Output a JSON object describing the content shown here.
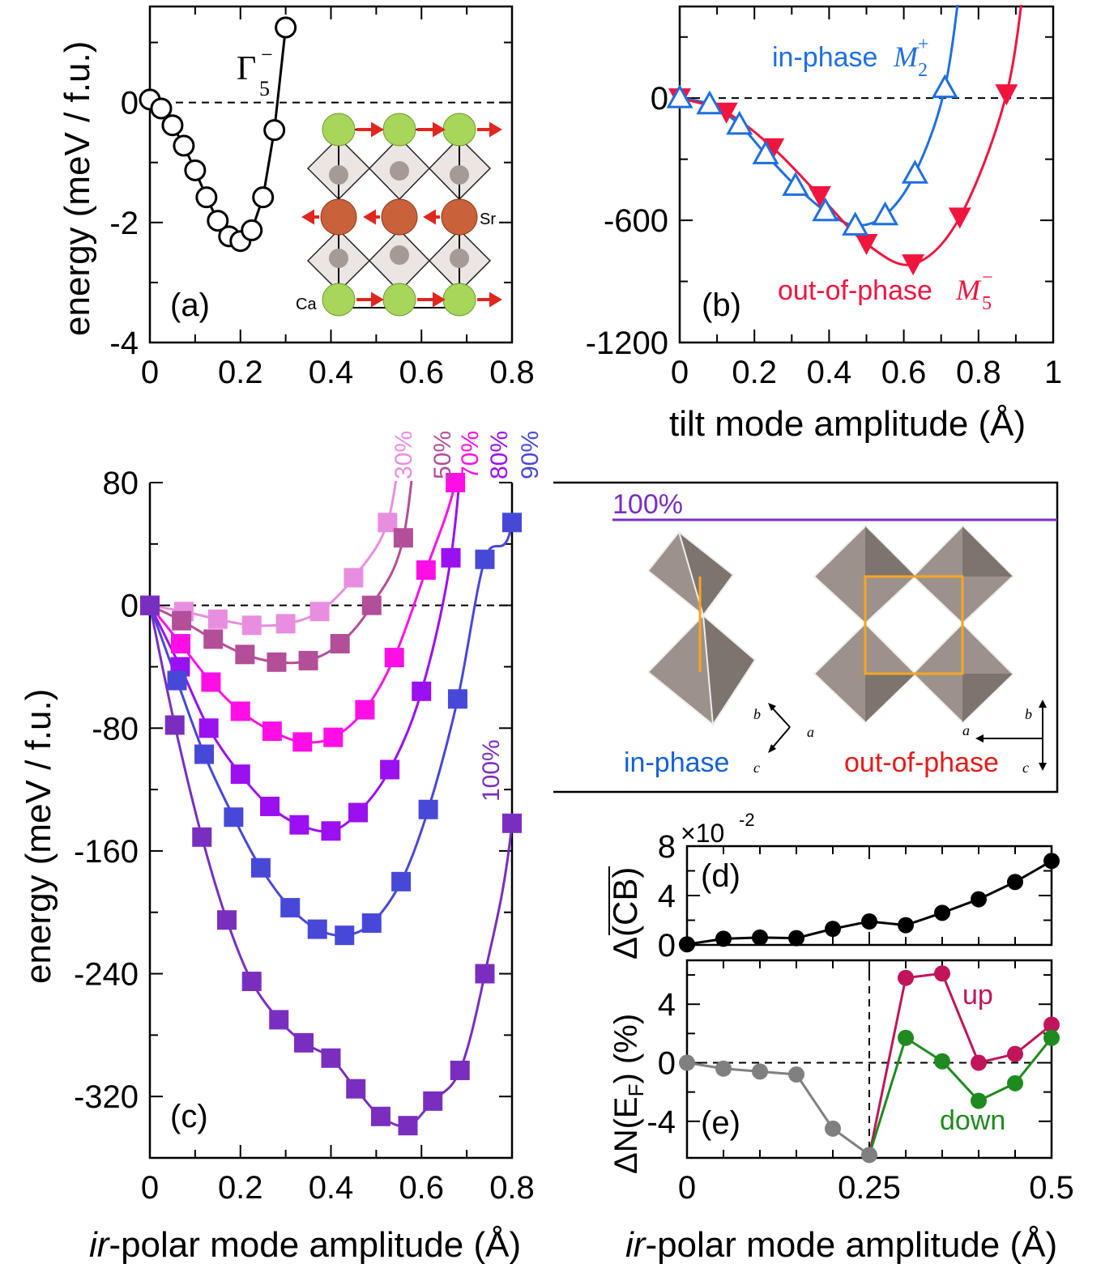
{
  "panels": {
    "a": {
      "label": "(a)",
      "mode_label": "Γ",
      "mode_sup": "−",
      "mode_sub": "5",
      "atom_sr": "Sr",
      "atom_ca": "Ca"
    },
    "b": {
      "label": "(b)",
      "in_phase_text": "in-phase",
      "in_phase_mode": "M",
      "in_phase_sup": "+",
      "in_phase_sub": "2",
      "out_phase_text": "out-of-phase",
      "out_phase_mode": "M",
      "out_phase_sup": "−",
      "out_phase_sub": "5"
    },
    "c": {
      "label": "(c)",
      "top_labels": [
        "30%",
        "50%",
        "70%",
        "80%",
        "90%"
      ],
      "label_100_side": "100%",
      "label_100_inset": "100%"
    },
    "inset": {
      "in_phase": "in-phase",
      "out_of_phase": "out-of-phase",
      "axis_a": "a",
      "axis_b": "b",
      "axis_c": "c"
    },
    "d": {
      "label": "(d)",
      "multiplier": "×10",
      "multiplier_exp": "-2",
      "ylabel": "Δ(CB)"
    },
    "e": {
      "label": "(e)",
      "up": "up",
      "down": "down",
      "ylabel_prefix": "ΔN(E",
      "ylabel_sub": "F",
      "ylabel_suffix": ") (%)"
    }
  },
  "axis_titles": {
    "energy_ab": "energy (meV / f.u.)",
    "energy_c": "energy (meV / f.u.)",
    "tilt_x": "tilt mode amplitude (Å)",
    "polar_x_ir": "ir",
    "polar_x_rest": "-polar mode amplitude (Å)"
  },
  "colors": {
    "a": "#000000",
    "in_phase": "#1f6fe0",
    "out_phase": "#f0153f",
    "c30": "#e88ee0",
    "c50": "#b34e98",
    "c70": "#ff0fe6",
    "c80": "#9a10f0",
    "c90": "#4848d8",
    "c100": "#7a2ec0",
    "up": "#c0155b",
    "down": "#1f8a1f",
    "gray": "#808080",
    "inset_label_blue": "#1560d8",
    "inset_label_red": "#e51a1a"
  },
  "chart_data": [
    {
      "id": "a",
      "type": "line",
      "xlabel": "",
      "ylabel": "energy (meV / f.u.)",
      "xlim": [
        0,
        0.8
      ],
      "ylim": [
        -4,
        1.6
      ],
      "xticks": [
        0,
        0.2,
        0.4,
        0.6,
        0.8
      ],
      "xticklabels": [
        "0",
        "0.2",
        "0.4",
        "0.6",
        "0.8"
      ],
      "yticks": [
        -4,
        -2,
        0
      ],
      "yticklabels": [
        "-4",
        "-2",
        "0"
      ],
      "series": [
        {
          "name": "Γ5−",
          "x": [
            0,
            0.025,
            0.05,
            0.075,
            0.1,
            0.125,
            0.15,
            0.175,
            0.2,
            0.225,
            0.25,
            0.275,
            0.3
          ],
          "y": [
            0.05,
            -0.1,
            -0.38,
            -0.72,
            -1.13,
            -1.58,
            -1.97,
            -2.23,
            -2.31,
            -2.13,
            -1.58,
            -0.46,
            1.25
          ]
        }
      ]
    },
    {
      "id": "b",
      "type": "line",
      "xlabel": "tilt mode amplitude (Å)",
      "ylabel": "",
      "xlim": [
        0,
        1.0
      ],
      "ylim": [
        -1200,
        450
      ],
      "xticks": [
        0,
        0.2,
        0.4,
        0.6,
        0.8,
        1.0
      ],
      "xticklabels": [
        "0",
        "0.2",
        "0.4",
        "0.6",
        "0.8",
        "1"
      ],
      "yticks": [
        -1200,
        -600,
        0
      ],
      "yticklabels": [
        "-1200",
        "-600",
        "0"
      ],
      "series": [
        {
          "name": "in-phase M2+",
          "x": [
            0,
            0.08,
            0.16,
            0.23,
            0.31,
            0.39,
            0.47,
            0.55,
            0.63,
            0.71
          ],
          "y": [
            0,
            -30,
            -130,
            -275,
            -430,
            -555,
            -625,
            -575,
            -370,
            50
          ]
        },
        {
          "name": "out-of-phase M5−",
          "x": [
            0,
            0.125,
            0.25,
            0.375,
            0.5,
            0.625,
            0.75,
            0.875
          ],
          "y": [
            0,
            -70,
            -245,
            -480,
            -715,
            -815,
            -585,
            20
          ]
        }
      ]
    },
    {
      "id": "c",
      "type": "line",
      "xlabel": "ir-polar mode amplitude (Å)",
      "ylabel": "energy (meV / f.u.)",
      "xlim": [
        0,
        0.8
      ],
      "ylim": [
        -360,
        80
      ],
      "xticks": [
        0,
        0.2,
        0.4,
        0.6,
        0.8
      ],
      "xticklabels": [
        "0",
        "0.2",
        "0.4",
        "0.6",
        "0.8"
      ],
      "yticks": [
        -320,
        -240,
        -160,
        -80,
        0,
        80
      ],
      "yticklabels": [
        "-320",
        "-240",
        "-160",
        "-80",
        "0",
        "80"
      ],
      "series": [
        {
          "name": "30%",
          "x": [
            0,
            0.075,
            0.15,
            0.225,
            0.3,
            0.375,
            0.45,
            0.525
          ],
          "y": [
            0,
            -4,
            -9,
            -13,
            -12,
            -4,
            18,
            54
          ]
        },
        {
          "name": "50%",
          "x": [
            0,
            0.07,
            0.14,
            0.21,
            0.28,
            0.35,
            0.42,
            0.49,
            0.56
          ],
          "y": [
            0,
            -10,
            -22,
            -32,
            -37,
            -36,
            -25,
            0,
            44
          ]
        },
        {
          "name": "70%",
          "x": [
            0,
            0.068,
            0.135,
            0.2,
            0.27,
            0.337,
            0.405,
            0.475,
            0.54,
            0.61,
            0.675
          ],
          "y": [
            0,
            -25,
            -50,
            -69,
            -82,
            -89,
            -86,
            -68,
            -34,
            23,
            80
          ]
        },
        {
          "name": "80%",
          "x": [
            0,
            0.067,
            0.13,
            0.2,
            0.265,
            0.33,
            0.4,
            0.46,
            0.53,
            0.6,
            0.665
          ],
          "y": [
            0,
            -40,
            -80,
            -110,
            -131,
            -143,
            -147,
            -135,
            -107,
            -56,
            31
          ]
        },
        {
          "name": "90%",
          "x": [
            0,
            0.06,
            0.12,
            0.185,
            0.245,
            0.31,
            0.37,
            0.43,
            0.49,
            0.555,
            0.615,
            0.68,
            0.74,
            0.8
          ],
          "y": [
            0,
            -49,
            -97,
            -138,
            -171,
            -197,
            -211,
            -215,
            -207,
            -180,
            -133,
            -61,
            30,
            54
          ]
        },
        {
          "name": "100%",
          "x": [
            0,
            0.055,
            0.115,
            0.17,
            0.225,
            0.285,
            0.34,
            0.4,
            0.455,
            0.51,
            0.57,
            0.625,
            0.685,
            0.74,
            0.8
          ],
          "y": [
            0,
            -78,
            -151,
            -205,
            -245,
            -270,
            -285,
            -295,
            -315,
            -333,
            -339,
            -323,
            -303,
            -240,
            -142
          ]
        }
      ]
    },
    {
      "id": "d",
      "type": "line",
      "xlabel": "",
      "ylabel": "Δ(CB)",
      "ymultiplier": "×10^-2",
      "xlim": [
        0,
        0.5
      ],
      "ylim": [
        0,
        8
      ],
      "yticks": [
        0,
        4,
        8
      ],
      "yticklabels": [
        "0",
        "4",
        "8"
      ],
      "series": [
        {
          "name": "CB",
          "x": [
            0,
            0.05,
            0.1,
            0.15,
            0.2,
            0.25,
            0.3,
            0.35,
            0.4,
            0.45,
            0.5
          ],
          "y": [
            0.05,
            0.5,
            0.6,
            0.55,
            1.3,
            1.9,
            1.6,
            2.6,
            3.7,
            5.1,
            6.8
          ]
        }
      ]
    },
    {
      "id": "e",
      "type": "line",
      "xlabel": "ir-polar mode amplitude (Å)",
      "ylabel": "ΔN(EF) (%)",
      "xlim": [
        0,
        0.5
      ],
      "ylim": [
        -6.5,
        7
      ],
      "xticks": [
        0,
        0.25,
        0.5
      ],
      "xticklabels": [
        "0",
        "0.25",
        "0.5"
      ],
      "yticks": [
        -4,
        0,
        4
      ],
      "yticklabels": [
        "-4",
        "0",
        "4"
      ],
      "series": [
        {
          "name": "total",
          "x": [
            0,
            0.05,
            0.1,
            0.15,
            0.2,
            0.25
          ],
          "y": [
            0,
            -0.4,
            -0.6,
            -0.8,
            -4.5,
            -6.3
          ]
        },
        {
          "name": "up",
          "x": [
            0.25,
            0.3,
            0.35,
            0.4,
            0.45,
            0.5
          ],
          "y": [
            -6.3,
            5.8,
            6.1,
            0,
            0.6,
            2.6
          ]
        },
        {
          "name": "down",
          "x": [
            0.25,
            0.3,
            0.35,
            0.4,
            0.45,
            0.5
          ],
          "y": [
            -6.3,
            1.7,
            0.1,
            -2.6,
            -1.4,
            1.7
          ]
        }
      ]
    }
  ]
}
